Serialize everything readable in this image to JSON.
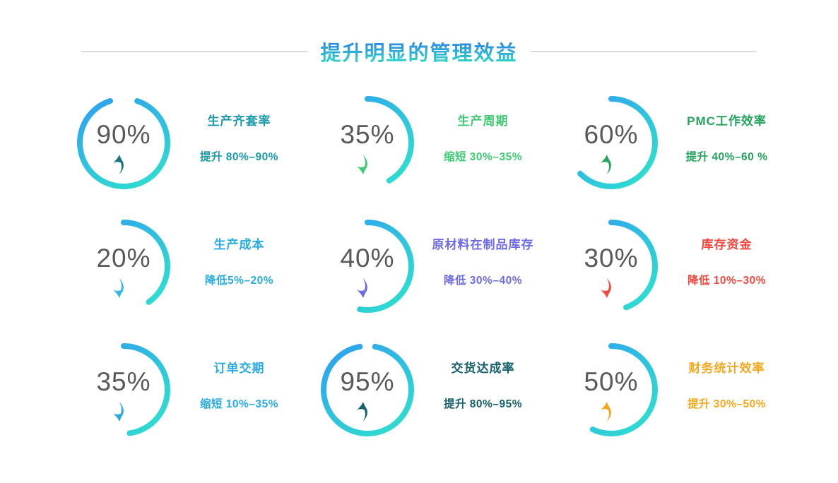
{
  "title": {
    "text": "提升明显的管理效益",
    "gradient_top": "#2e7fe8",
    "gradient_bottom": "#2fd9c3",
    "line_color": "#dcdcdc"
  },
  "number_color": "#58595b",
  "arc_gradient": {
    "start": "#2f9df1",
    "end": "#2fe3cc"
  },
  "chart_data": {
    "type": "donut-grid",
    "title": "提升明显的管理效益",
    "legend_position": "none",
    "items": [
      {
        "value": "90%",
        "percent": 90,
        "arc_degrees": 324,
        "gap_centered_top": true,
        "direction": "up",
        "label": "生产齐套率",
        "detail": "提升 80%–90%",
        "color": "#1b9aaa",
        "arrow_color": "#1a7480"
      },
      {
        "value": "35%",
        "percent": 35,
        "arc_degrees": 150,
        "gap_centered_top": false,
        "direction": "down",
        "label": "生产周期",
        "detail": "缩短 30%–35%",
        "color": "#3ecb72",
        "arrow_color": "#3ecb72"
      },
      {
        "value": "60%",
        "percent": 60,
        "arc_degrees": 225,
        "gap_centered_top": false,
        "direction": "up",
        "label": "PMC工作效率",
        "detail": "提升 40%–60 %",
        "color": "#23a35c",
        "arrow_color": "#23a35c"
      },
      {
        "value": "20%",
        "percent": 20,
        "arc_degrees": 145,
        "gap_centered_top": false,
        "direction": "down",
        "label": "生产成本",
        "detail": "降低5%–20%",
        "color": "#29abe2",
        "arrow_color": "#35b7e8"
      },
      {
        "value": "40%",
        "percent": 40,
        "arc_degrees": 190,
        "gap_centered_top": false,
        "direction": "down",
        "label": "原材料在制品库存",
        "detail": "降低 30%–40%",
        "color": "#6b6be8",
        "arrow_color": "#6b6be8"
      },
      {
        "value": "30%",
        "percent": 30,
        "arc_degrees": 160,
        "gap_centered_top": false,
        "direction": "down",
        "label": "库存资金",
        "detail": "降低 10%–30%",
        "color": "#f4473f",
        "arrow_color": "#f4473f"
      },
      {
        "value": "35%",
        "percent": 35,
        "arc_degrees": 172,
        "gap_centered_top": false,
        "direction": "down",
        "label": "订单交期",
        "detail": "缩短 10%–35%",
        "color": "#29abe2",
        "arrow_color": "#2fa8e1"
      },
      {
        "value": "95%",
        "percent": 95,
        "arc_degrees": 340,
        "gap_centered_top": true,
        "direction": "up",
        "label": "交货达成率",
        "detail": "提升 80%–95%",
        "color": "#17616d",
        "arrow_color": "#17616d"
      },
      {
        "value": "50%",
        "percent": 50,
        "arc_degrees": 205,
        "gap_centered_top": false,
        "direction": "up",
        "label": "财务统计效率",
        "detail": "提升 30%–50%",
        "color": "#f5a81e",
        "arrow_color": "#f5a81e"
      }
    ]
  }
}
